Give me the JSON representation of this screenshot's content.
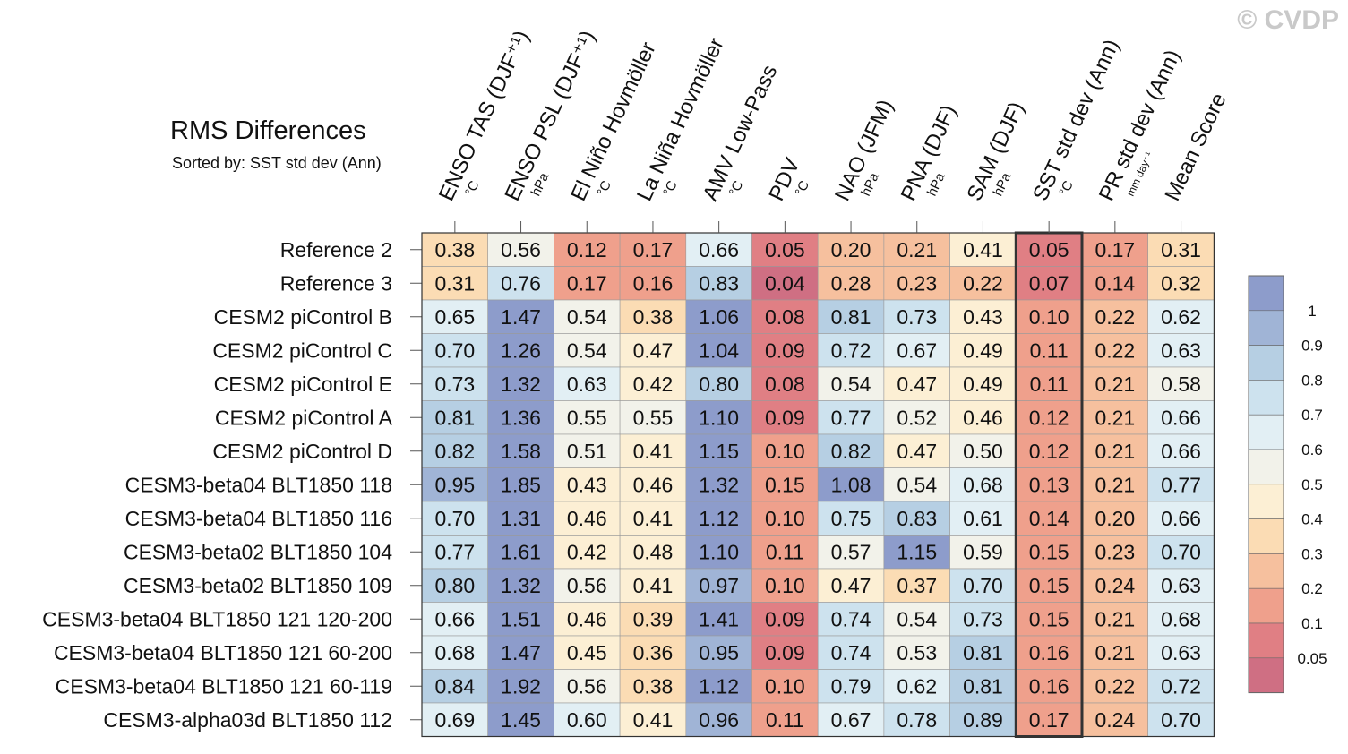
{
  "watermark": "© CVDP",
  "chart_data": {
    "type": "heatmap",
    "title": "RMS Differences",
    "subtitle": "Sorted by: SST std dev (Ann)",
    "highlighted_column": "SST std dev (Ann)",
    "columns": [
      {
        "name": "ENSO TAS (DJF⁺¹)",
        "unit": "°C"
      },
      {
        "name": "ENSO PSL (DJF⁺¹)",
        "unit": "hPa"
      },
      {
        "name": "El Niño Hovmöller",
        "unit": "°C"
      },
      {
        "name": "La Niña Hovmöller",
        "unit": "°C"
      },
      {
        "name": "AMV Low-Pass",
        "unit": "°C"
      },
      {
        "name": "PDV",
        "unit": "°C"
      },
      {
        "name": "NAO (JFM)",
        "unit": "hPa"
      },
      {
        "name": "PNA (DJF)",
        "unit": "hPa"
      },
      {
        "name": "SAM (DJF)",
        "unit": "hPa"
      },
      {
        "name": "SST std dev (Ann)",
        "unit": "°C"
      },
      {
        "name": "PR std dev (Ann)",
        "unit": "mm day⁻¹"
      },
      {
        "name": "Mean Score",
        "unit": ""
      }
    ],
    "rows": [
      "Reference 2",
      "Reference 3",
      "CESM2 piControl B",
      "CESM2 piControl C",
      "CESM2 piControl E",
      "CESM2 piControl A",
      "CESM2 piControl D",
      "CESM3-beta04 BLT1850 118",
      "CESM3-beta04 BLT1850 116",
      "CESM3-beta02 BLT1850 104",
      "CESM3-beta02 BLT1850 109",
      "CESM3-beta04 BLT1850 121 120-200",
      "CESM3-beta04 BLT1850 121 60-200",
      "CESM3-beta04 BLT1850 121 60-119",
      "CESM3-alpha03d BLT1850 112"
    ],
    "values": [
      [
        "0.38",
        "0.56",
        "0.12",
        "0.17",
        "0.66",
        "0.05",
        "0.20",
        "0.21",
        "0.41",
        "0.05",
        "0.17",
        "0.31"
      ],
      [
        "0.31",
        "0.76",
        "0.17",
        "0.16",
        "0.83",
        "0.04",
        "0.28",
        "0.23",
        "0.22",
        "0.07",
        "0.14",
        "0.32"
      ],
      [
        "0.65",
        "1.47",
        "0.54",
        "0.38",
        "1.06",
        "0.08",
        "0.81",
        "0.73",
        "0.43",
        "0.10",
        "0.22",
        "0.62"
      ],
      [
        "0.70",
        "1.26",
        "0.54",
        "0.47",
        "1.04",
        "0.09",
        "0.72",
        "0.67",
        "0.49",
        "0.11",
        "0.22",
        "0.63"
      ],
      [
        "0.73",
        "1.32",
        "0.63",
        "0.42",
        "0.80",
        "0.08",
        "0.54",
        "0.47",
        "0.49",
        "0.11",
        "0.21",
        "0.58"
      ],
      [
        "0.81",
        "1.36",
        "0.55",
        "0.55",
        "1.10",
        "0.09",
        "0.77",
        "0.52",
        "0.46",
        "0.12",
        "0.21",
        "0.66"
      ],
      [
        "0.82",
        "1.58",
        "0.51",
        "0.41",
        "1.15",
        "0.10",
        "0.82",
        "0.47",
        "0.50",
        "0.12",
        "0.21",
        "0.66"
      ],
      [
        "0.95",
        "1.85",
        "0.43",
        "0.46",
        "1.32",
        "0.15",
        "1.08",
        "0.54",
        "0.68",
        "0.13",
        "0.21",
        "0.77"
      ],
      [
        "0.70",
        "1.31",
        "0.46",
        "0.41",
        "1.12",
        "0.10",
        "0.75",
        "0.83",
        "0.61",
        "0.14",
        "0.20",
        "0.66"
      ],
      [
        "0.77",
        "1.61",
        "0.42",
        "0.48",
        "1.10",
        "0.11",
        "0.57",
        "1.15",
        "0.59",
        "0.15",
        "0.23",
        "0.70"
      ],
      [
        "0.80",
        "1.32",
        "0.56",
        "0.41",
        "0.97",
        "0.10",
        "0.47",
        "0.37",
        "0.70",
        "0.15",
        "0.24",
        "0.63"
      ],
      [
        "0.66",
        "1.51",
        "0.46",
        "0.39",
        "1.41",
        "0.09",
        "0.74",
        "0.54",
        "0.73",
        "0.15",
        "0.21",
        "0.68"
      ],
      [
        "0.68",
        "1.47",
        "0.45",
        "0.36",
        "0.95",
        "0.09",
        "0.74",
        "0.53",
        "0.81",
        "0.16",
        "0.21",
        "0.63"
      ],
      [
        "0.84",
        "1.92",
        "0.56",
        "0.38",
        "1.12",
        "0.10",
        "0.79",
        "0.62",
        "0.81",
        "0.16",
        "0.22",
        "0.72"
      ],
      [
        "0.69",
        "1.45",
        "0.60",
        "0.41",
        "0.96",
        "0.11",
        "0.67",
        "0.78",
        "0.89",
        "0.17",
        "0.24",
        "0.70"
      ]
    ],
    "colorbar": {
      "levels": [
        "1",
        "0.9",
        "0.8",
        "0.7",
        "0.6",
        "0.5",
        "0.4",
        "0.3",
        "0.2",
        "0.1",
        "0.05"
      ],
      "colors": [
        "#8d9ccb",
        "#a0b4d6",
        "#b6cfe3",
        "#cde2ee",
        "#e2eff4",
        "#f2f2ea",
        "#fcefd4",
        "#fbdcb4",
        "#f6c09e",
        "#efa08c",
        "#e07f84",
        "#cf6f83"
      ]
    }
  }
}
